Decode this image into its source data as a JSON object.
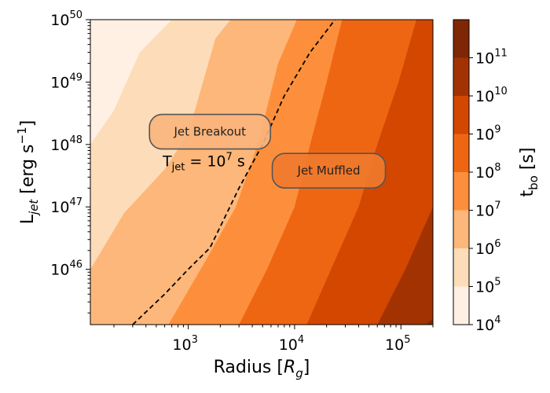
{
  "chart_data": {
    "type": "contour",
    "title": "",
    "xlabel": "Radius [R_g]",
    "ylabel": "L_jet [erg s^-1]",
    "xscale": "log",
    "yscale": "log",
    "xlim": [
      120,
      200000
    ],
    "ylim": [
      1.3e+45,
      1e+50
    ],
    "x_ticks": [
      {
        "value": 1000,
        "label": "10",
        "exp": "3"
      },
      {
        "value": 10000,
        "label": "10",
        "exp": "4"
      },
      {
        "value": 100000,
        "label": "10",
        "exp": "5"
      }
    ],
    "y_ticks": [
      {
        "value": 1e+46,
        "label": "10",
        "exp": "46"
      },
      {
        "value": 1e+47,
        "label": "10",
        "exp": "47"
      },
      {
        "value": 1e+48,
        "label": "10",
        "exp": "48"
      },
      {
        "value": 1e+49,
        "label": "10",
        "exp": "49"
      },
      {
        "value": 1e+50,
        "label": "10",
        "exp": "50"
      }
    ],
    "colorbar": {
      "label": "t_bo [s]",
      "scale": "log",
      "levels": [
        {
          "from": 10000.0,
          "to": 100000.0,
          "color": "#fff0e3"
        },
        {
          "from": 100000.0,
          "to": 1000000.0,
          "color": "#fddcb9"
        },
        {
          "from": 1000000.0,
          "to": 10000000.0,
          "color": "#fdb77a"
        },
        {
          "from": 10000000.0,
          "to": 100000000.0,
          "color": "#fd8f3c"
        },
        {
          "from": 100000000.0,
          "to": 1000000000.0,
          "color": "#ef6612"
        },
        {
          "from": 1000000000.0,
          "to": 10000000000.0,
          "color": "#d34701"
        },
        {
          "from": 10000000000.0,
          "to": 100000000000.0,
          "color": "#a33202"
        },
        {
          "from": 100000000000.0,
          "to": 1000000000000.0,
          "color": "#7f2704"
        }
      ],
      "tick_labels": [
        {
          "label": "10",
          "exp": "4"
        },
        {
          "label": "10",
          "exp": "5"
        },
        {
          "label": "10",
          "exp": "6"
        },
        {
          "label": "10",
          "exp": "7"
        },
        {
          "label": "10",
          "exp": "8"
        },
        {
          "label": "10",
          "exp": "9"
        },
        {
          "label": "10",
          "exp": "10"
        },
        {
          "label": "10",
          "exp": "11"
        }
      ]
    },
    "contour_boundaries": [
      {
        "name": "1e5",
        "points": [
          [
            120,
            1e+48
          ],
          [
            200,
            3.5e+48
          ],
          [
            350,
            3e+49
          ],
          [
            700,
            1e+50
          ]
        ]
      },
      {
        "name": "1e6",
        "points": [
          [
            120,
            1e+46
          ],
          [
            250,
            8e+46
          ],
          [
            600,
            4e+47
          ],
          [
            1000,
            1.5e+48
          ],
          [
            1800,
            5e+49
          ],
          [
            2500,
            1e+50
          ]
        ]
      },
      {
        "name": "1e7",
        "points": [
          [
            650,
            1.3e+45
          ],
          [
            1500,
            1.5e+46
          ],
          [
            2800,
            1e+47
          ],
          [
            4500,
            1e+48
          ],
          [
            7000,
            2e+49
          ],
          [
            10500,
            1e+50
          ]
        ]
      },
      {
        "name": "1e8",
        "points": [
          [
            3000,
            1.3e+45
          ],
          [
            5500,
            1e+46
          ],
          [
            10000,
            1e+47
          ],
          [
            14000,
            1e+48
          ],
          [
            20000,
            1e+49
          ],
          [
            28000,
            1e+50
          ]
        ]
      },
      {
        "name": "1e9",
        "points": [
          [
            13000,
            1.3e+45
          ],
          [
            22000,
            1e+46
          ],
          [
            40000,
            1e+47
          ],
          [
            60000,
            1e+48
          ],
          [
            95000,
            1e+49
          ],
          [
            140000,
            1e+50
          ]
        ]
      },
      {
        "name": "1e10",
        "points": [
          [
            60000,
            1.3e+45
          ],
          [
            110000,
            1e+46
          ],
          [
            200000,
            1e+47
          ]
        ]
      },
      {
        "name": "1e11",
        "points": [
          [
            200000,
            4.5e+45
          ]
        ]
      }
    ],
    "threshold_line": {
      "label": "T_jet = 10^7 s",
      "style": "dashed",
      "points": [
        [
          300,
          1.3e+45
        ],
        [
          600,
          4e+45
        ],
        [
          1000,
          1e+46
        ],
        [
          1600,
          2.2e+46
        ],
        [
          3000,
          2e+47
        ],
        [
          5000,
          1e+48
        ],
        [
          8000,
          6e+48
        ],
        [
          14000,
          3e+49
        ],
        [
          24000,
          1e+50
        ]
      ]
    },
    "annotations": [
      {
        "text": "Jet Breakout",
        "x": 1600,
        "y": 1.6e+48,
        "color": "#f9b47c"
      },
      {
        "text": "Jet Muffled",
        "x": 21000,
        "y": 3.8e+47,
        "color": "#ef7a2e"
      }
    ],
    "threshold_label": {
      "base": "T",
      "sub": "jet",
      "mid": " = 10",
      "sup": "7",
      "unit": " s",
      "x": 1400,
      "y": 4.5e+47
    }
  }
}
